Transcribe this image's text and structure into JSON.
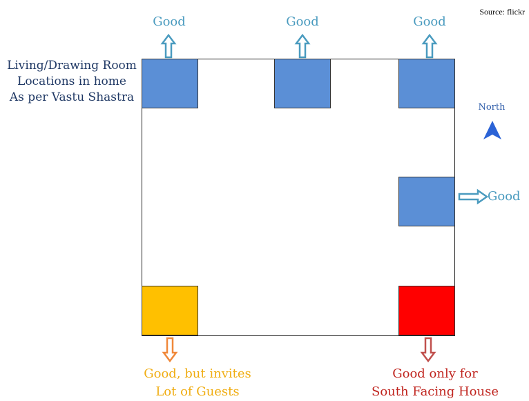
{
  "source": "Source: flickr",
  "title": {
    "line1": "Living/Drawing Room",
    "line2": "Locations in home",
    "line3": "As per Vastu Shastra"
  },
  "compass": {
    "label": "North",
    "color": "#2b63d6"
  },
  "colors": {
    "good_room": "#5b8fd6",
    "guests_room": "#ffc000",
    "south_room": "#ff0000",
    "good_arrow": "#4a9bbf",
    "guests_arrow": "#f0883a",
    "south_arrow": "#c0504d"
  },
  "rooms": {
    "north_west": {
      "verdict": "Good"
    },
    "north": {
      "verdict": "Good"
    },
    "north_east": {
      "verdict": "Good"
    },
    "east": {
      "verdict": "Good"
    },
    "south_west": {
      "verdict_line1": "Good, but invites",
      "verdict_line2": "Lot of Guests"
    },
    "south_east": {
      "verdict_line1": "Good only for",
      "verdict_line2": "South Facing House"
    }
  }
}
